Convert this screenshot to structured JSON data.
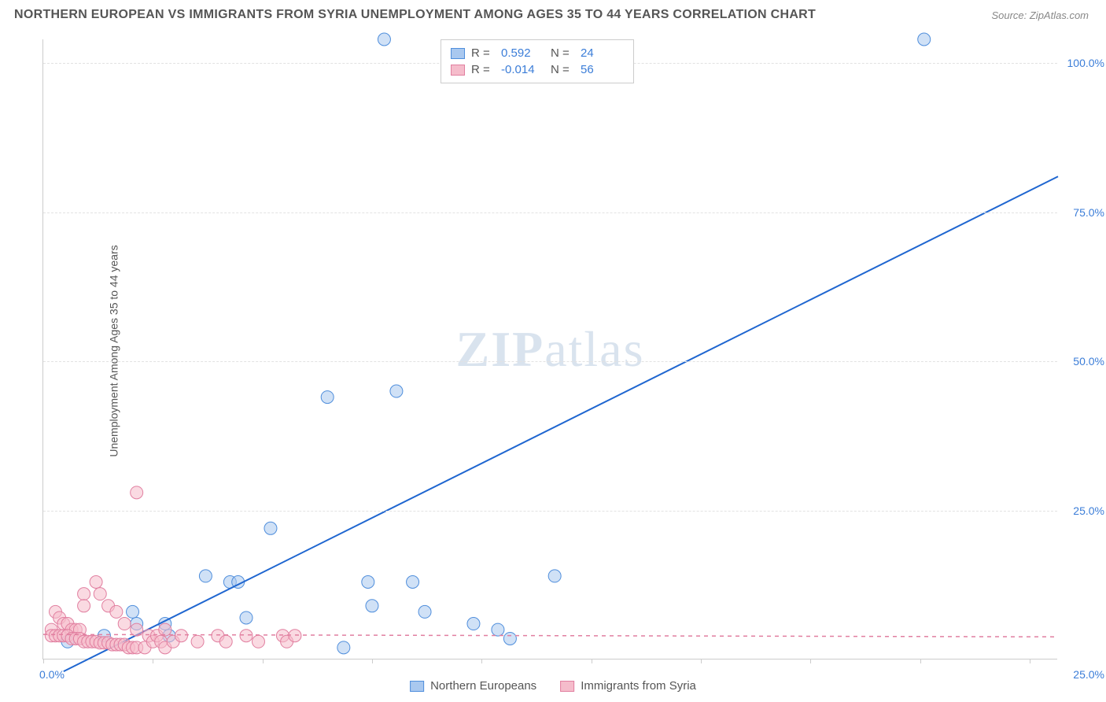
{
  "title": "NORTHERN EUROPEAN VS IMMIGRANTS FROM SYRIA UNEMPLOYMENT AMONG AGES 35 TO 44 YEARS CORRELATION CHART",
  "source": "Source: ZipAtlas.com",
  "y_axis_label": "Unemployment Among Ages 35 to 44 years",
  "watermark_bold": "ZIP",
  "watermark_rest": "atlas",
  "chart": {
    "type": "scatter",
    "xlim": [
      0,
      25
    ],
    "ylim": [
      0,
      104
    ],
    "x_tick_positions": [
      0,
      2.7,
      5.4,
      8.1,
      10.8,
      13.5,
      16.2,
      18.9,
      21.6,
      24.3
    ],
    "x_label_min": "0.0%",
    "x_label_max": "25.0%",
    "y_ticks": [
      {
        "value": 25,
        "label": "25.0%"
      },
      {
        "value": 50,
        "label": "50.0%"
      },
      {
        "value": 75,
        "label": "75.0%"
      },
      {
        "value": 100,
        "label": "100.0%"
      }
    ],
    "grid_color": "#e2e2e2",
    "background_color": "#ffffff",
    "axis_color": "#cccccc",
    "tick_label_color": "#3b7dd8",
    "marker_radius": 8,
    "marker_opacity": 0.55,
    "series": [
      {
        "name": "Northern Europeans",
        "color_fill": "#a9c8ef",
        "color_stroke": "#4f8edc",
        "R": "0.592",
        "N": "24",
        "trend": {
          "x1": 0.5,
          "y1": -2,
          "x2": 25,
          "y2": 81,
          "color": "#1f66d0",
          "width": 2,
          "dash": "none"
        },
        "points": [
          {
            "x": 8.4,
            "y": 104
          },
          {
            "x": 21.7,
            "y": 104
          },
          {
            "x": 7.0,
            "y": 44
          },
          {
            "x": 8.7,
            "y": 45
          },
          {
            "x": 5.6,
            "y": 22
          },
          {
            "x": 4.0,
            "y": 14
          },
          {
            "x": 4.6,
            "y": 13
          },
          {
            "x": 4.8,
            "y": 13
          },
          {
            "x": 8.0,
            "y": 13
          },
          {
            "x": 9.1,
            "y": 13
          },
          {
            "x": 12.6,
            "y": 14
          },
          {
            "x": 8.1,
            "y": 9
          },
          {
            "x": 9.4,
            "y": 8
          },
          {
            "x": 10.6,
            "y": 6
          },
          {
            "x": 11.2,
            "y": 5
          },
          {
            "x": 11.5,
            "y": 3.5
          },
          {
            "x": 5.0,
            "y": 7
          },
          {
            "x": 2.2,
            "y": 8
          },
          {
            "x": 2.3,
            "y": 6
          },
          {
            "x": 3.1,
            "y": 4
          },
          {
            "x": 3.0,
            "y": 6
          },
          {
            "x": 1.5,
            "y": 4
          },
          {
            "x": 7.4,
            "y": 2
          },
          {
            "x": 0.6,
            "y": 3
          }
        ]
      },
      {
        "name": "Immigrants from Syria",
        "color_fill": "#f5bccb",
        "color_stroke": "#e17fa0",
        "R": "-0.014",
        "N": "56",
        "trend": {
          "x1": 0,
          "y1": 4.2,
          "x2": 25,
          "y2": 3.8,
          "color": "#e17fa0",
          "width": 1.5,
          "dash": "5,5"
        },
        "points": [
          {
            "x": 2.3,
            "y": 28
          },
          {
            "x": 1.3,
            "y": 13
          },
          {
            "x": 1.4,
            "y": 11
          },
          {
            "x": 1.0,
            "y": 11
          },
          {
            "x": 1.0,
            "y": 9
          },
          {
            "x": 1.6,
            "y": 9
          },
          {
            "x": 1.8,
            "y": 8
          },
          {
            "x": 2.0,
            "y": 6
          },
          {
            "x": 2.3,
            "y": 5
          },
          {
            "x": 0.3,
            "y": 8
          },
          {
            "x": 0.4,
            "y": 7
          },
          {
            "x": 0.5,
            "y": 6
          },
          {
            "x": 0.6,
            "y": 6
          },
          {
            "x": 0.7,
            "y": 5
          },
          {
            "x": 0.8,
            "y": 5
          },
          {
            "x": 0.9,
            "y": 5
          },
          {
            "x": 0.2,
            "y": 5
          },
          {
            "x": 0.2,
            "y": 4
          },
          {
            "x": 0.3,
            "y": 4
          },
          {
            "x": 0.4,
            "y": 4
          },
          {
            "x": 0.5,
            "y": 4
          },
          {
            "x": 0.6,
            "y": 4
          },
          {
            "x": 0.7,
            "y": 3.5
          },
          {
            "x": 0.8,
            "y": 3.5
          },
          {
            "x": 0.9,
            "y": 3.5
          },
          {
            "x": 1.0,
            "y": 3
          },
          {
            "x": 1.1,
            "y": 3
          },
          {
            "x": 1.2,
            "y": 3
          },
          {
            "x": 1.3,
            "y": 3
          },
          {
            "x": 1.4,
            "y": 2.8
          },
          {
            "x": 1.5,
            "y": 2.8
          },
          {
            "x": 1.6,
            "y": 2.8
          },
          {
            "x": 1.7,
            "y": 2.5
          },
          {
            "x": 1.8,
            "y": 2.5
          },
          {
            "x": 1.9,
            "y": 2.5
          },
          {
            "x": 2.0,
            "y": 2.5
          },
          {
            "x": 2.1,
            "y": 2
          },
          {
            "x": 2.2,
            "y": 2
          },
          {
            "x": 2.3,
            "y": 2
          },
          {
            "x": 2.5,
            "y": 2
          },
          {
            "x": 2.6,
            "y": 4
          },
          {
            "x": 2.7,
            "y": 3
          },
          {
            "x": 2.8,
            "y": 4
          },
          {
            "x": 2.9,
            "y": 3
          },
          {
            "x": 3.0,
            "y": 5
          },
          {
            "x": 3.0,
            "y": 2
          },
          {
            "x": 3.2,
            "y": 3
          },
          {
            "x": 3.4,
            "y": 4
          },
          {
            "x": 3.8,
            "y": 3
          },
          {
            "x": 4.3,
            "y": 4
          },
          {
            "x": 4.5,
            "y": 3
          },
          {
            "x": 5.0,
            "y": 4
          },
          {
            "x": 5.3,
            "y": 3
          },
          {
            "x": 5.9,
            "y": 4
          },
          {
            "x": 6.0,
            "y": 3
          },
          {
            "x": 6.2,
            "y": 4
          }
        ]
      }
    ]
  },
  "legend_top": {
    "r_label": "R =",
    "n_label": "N ="
  }
}
